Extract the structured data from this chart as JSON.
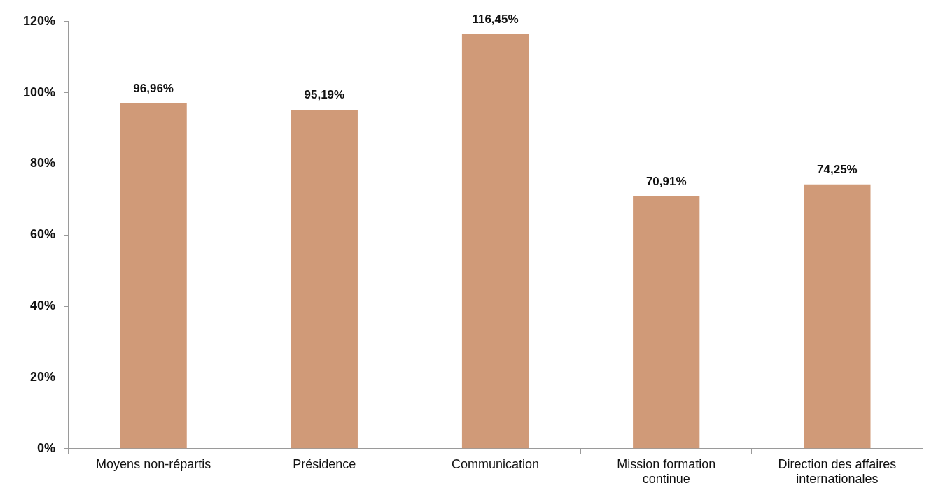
{
  "chart_data": {
    "type": "bar",
    "categories": [
      "Moyens non-répartis",
      "Présidence",
      "Communication",
      "Mission formation continue",
      "Direction des affaires internationales"
    ],
    "values": [
      96.96,
      95.19,
      116.45,
      70.91,
      74.25
    ],
    "value_labels": [
      "96,96%",
      "95,19%",
      "116,45%",
      "70,91%",
      "74,25%"
    ],
    "color": "#d09a78",
    "ylim": [
      0,
      120
    ],
    "yticks": [
      {
        "value": 0,
        "label": "0%"
      },
      {
        "value": 20,
        "label": "20%"
      },
      {
        "value": 40,
        "label": "40%"
      },
      {
        "value": 60,
        "label": "60%"
      },
      {
        "value": 80,
        "label": "80%"
      },
      {
        "value": 100,
        "label": "100%"
      },
      {
        "value": 120,
        "label": "120%"
      }
    ],
    "grid": false,
    "legend": false
  }
}
